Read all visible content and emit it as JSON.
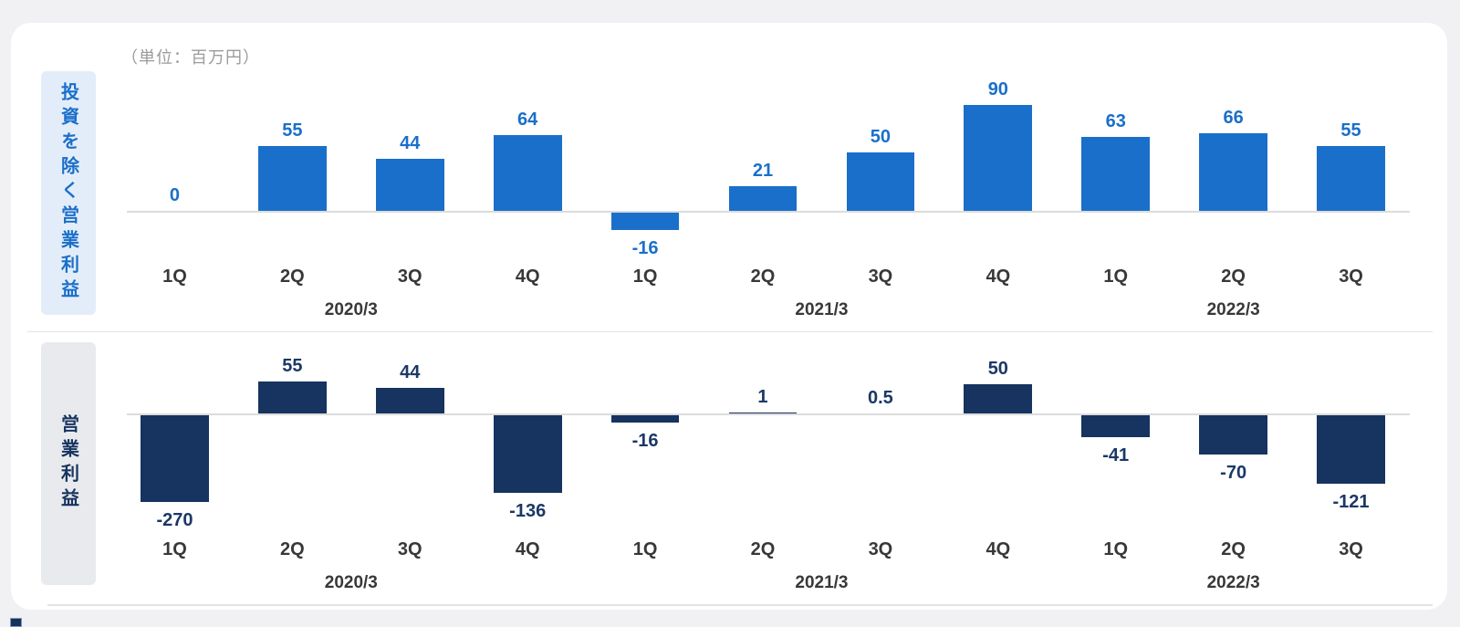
{
  "page": {
    "unit_label": "（単位：百万円）",
    "background": "#F1F1F3",
    "card_background": "#FFFFFF"
  },
  "chart_data": [
    {
      "type": "bar",
      "title": "投資を除く営業利益",
      "unit": "百万円",
      "categories": [
        "1Q",
        "2Q",
        "3Q",
        "4Q",
        "1Q",
        "2Q",
        "3Q",
        "4Q",
        "1Q",
        "2Q",
        "3Q"
      ],
      "values": [
        0,
        55,
        44,
        64,
        -16,
        21,
        50,
        90,
        63,
        66,
        55
      ],
      "value_labels": [
        "0",
        "55",
        "44",
        "64",
        "-16",
        "21",
        "50",
        "90",
        "63",
        "66",
        "55"
      ],
      "year_groups": [
        {
          "label": "2020/3",
          "start": 0,
          "end": 3
        },
        {
          "label": "2021/3",
          "start": 4,
          "end": 7
        },
        {
          "label": "2022/3",
          "start": 8,
          "end": 10
        }
      ],
      "ylim": [
        -30,
        110
      ],
      "gridlines": false,
      "legend": "none",
      "bar_color": "#1A6FCA",
      "value_color": "#1A6FCA",
      "side_label_bg": "#E3EDF9",
      "side_label_color": "#1A6FCA",
      "baseline_color": "#DCDCDC",
      "tick_color": "#383838"
    },
    {
      "type": "bar",
      "title": "営業利益",
      "unit": "百万円",
      "categories": [
        "1Q",
        "2Q",
        "3Q",
        "4Q",
        "1Q",
        "2Q",
        "3Q",
        "4Q",
        "1Q",
        "2Q",
        "3Q"
      ],
      "values": [
        -270,
        55,
        44,
        -136,
        -16,
        1,
        0.5,
        50,
        -41,
        -70,
        -121
      ],
      "value_labels": [
        "-270",
        "55",
        "44",
        "-136",
        "-16",
        "1",
        "0.5",
        "50",
        "-41",
        "-70",
        "-121"
      ],
      "year_groups": [
        {
          "label": "2020/3",
          "start": 0,
          "end": 3
        },
        {
          "label": "2021/3",
          "start": 4,
          "end": 7
        },
        {
          "label": "2022/3",
          "start": 8,
          "end": 10
        }
      ],
      "ylim": [
        -155,
        60
      ],
      "clipped_bars_note": "bar for -270 is clipped at plot bottom",
      "gridlines": false,
      "legend": "none",
      "bar_color": "#17335F",
      "value_color": "#1B3866",
      "side_label_bg": "#E8EAED",
      "side_label_color": "#17335F",
      "baseline_color": "#DCDCDC",
      "tick_color": "#383838"
    }
  ]
}
